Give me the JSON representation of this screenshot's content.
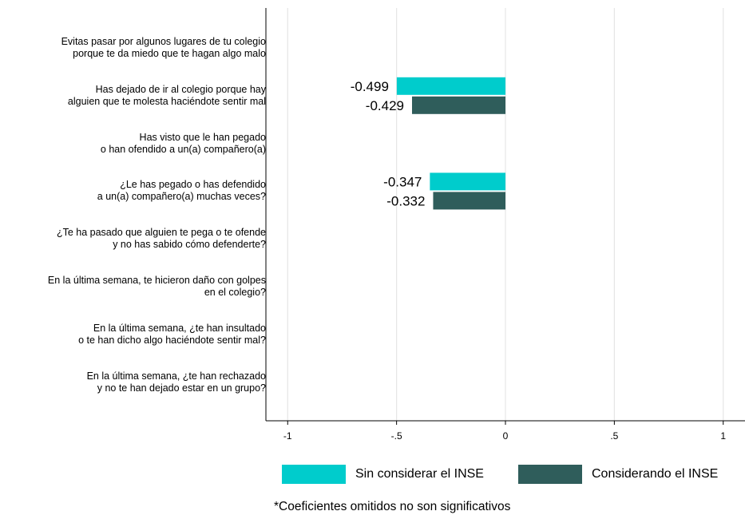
{
  "chart_data": {
    "type": "bar",
    "orientation": "horizontal",
    "categories": [
      "Evitas pasar por algunos lugares de tu colegio\nporque te da miedo que te hagan algo malo",
      "Has dejado de ir al colegio porque hay\nalguien que te molesta haciéndote sentir mal",
      "Has visto que le han pegado\no han ofendido a un(a) compañero(a)",
      "¿Le has pegado o has defendido\na un(a) compañero(a) muchas veces?",
      "¿Te ha pasado que alguien te pega o te ofende\ny no has sabido cómo defenderte?",
      "En la última semana, te hicieron daño con golpes\nen el colegio?",
      "En la última semana, ¿te han insultado\no te han dicho algo haciéndote sentir mal?",
      "En la última semana, ¿te han rechazado\ny no te han dejado estar en un grupo?"
    ],
    "series": [
      {
        "name": "Sin considerar el INSE",
        "color": "#00CCCC",
        "values": [
          null,
          -0.499,
          null,
          -0.347,
          null,
          null,
          null,
          null
        ],
        "labels": [
          "",
          "-0.499",
          "",
          "-0.347",
          "",
          "",
          "",
          ""
        ]
      },
      {
        "name": "Considerando el INSE",
        "color": "#2F5D5B",
        "values": [
          null,
          -0.429,
          null,
          -0.332,
          null,
          null,
          null,
          null
        ],
        "labels": [
          "",
          "-0.429",
          "",
          "-0.332",
          "",
          "",
          "",
          ""
        ]
      }
    ],
    "xlim": [
      -1.1,
      1.1
    ],
    "xticks": [
      -1,
      -0.5,
      0,
      0.5,
      1
    ],
    "xtick_labels": [
      "-1",
      "-.5",
      "0",
      ".5",
      "1"
    ],
    "grid": "vertical",
    "legend_position": "bottom"
  },
  "legend": [
    {
      "label": "Sin considerar el INSE",
      "color": "#00CCCC"
    },
    {
      "label": "Considerando el INSE",
      "color": "#2F5D5B"
    }
  ],
  "footnote": "*Coeficientes omitidos no son significativos"
}
